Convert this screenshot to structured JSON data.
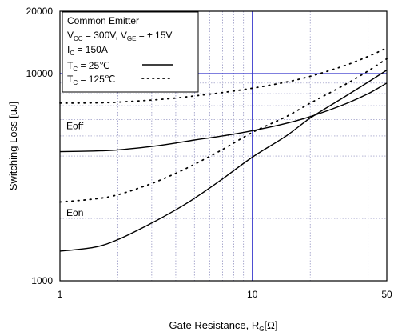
{
  "chart_data": {
    "type": "line",
    "xlabel": "Gate Resistance, R",
    "xlabel_sub": "G",
    "xlabel_unit": "[Ω]",
    "ylabel": "Switching Loss [uJ]",
    "x_scale": "log",
    "y_scale": "log",
    "xlim": [
      1,
      50
    ],
    "ylim": [
      1000,
      20000
    ],
    "x_ticks": [
      {
        "value": 1,
        "label": "1"
      },
      {
        "value": 10,
        "label": "10"
      },
      {
        "value": 50,
        "label": "50"
      }
    ],
    "y_ticks": [
      {
        "value": 1000,
        "label": "1000"
      },
      {
        "value": 10000,
        "label": "10000"
      },
      {
        "value": 20000,
        "label": "20000"
      }
    ],
    "grid": true,
    "reference_lines": {
      "x": 10,
      "y": 10000,
      "color": "#3333cc"
    },
    "legend": {
      "placement": "top-left",
      "title": "Common Emitter",
      "lines": [
        {
          "text": "V",
          "sub": "CC",
          "rest": " = 300V, V",
          "sub2": "GE",
          "rest2": " = ± 15V"
        },
        {
          "text": "I",
          "sub": "C",
          "rest": " = 150A"
        }
      ],
      "entries": [
        {
          "text": "T",
          "sub": "C",
          "rest": " =  25℃",
          "style": "solid"
        },
        {
          "text": "T",
          "sub": "C",
          "rest": " = 125℃",
          "style": "dotted"
        }
      ]
    },
    "curve_labels": [
      {
        "text": "Eoff",
        "x": 1.08,
        "y": 5400
      },
      {
        "text": "Eon",
        "x": 1.08,
        "y": 2050
      }
    ],
    "series": [
      {
        "name": "Eoff 25℃",
        "style": "solid",
        "x": [
          1,
          1.5,
          2,
          3,
          4,
          5,
          7,
          10,
          15,
          20,
          30,
          40,
          50
        ],
        "y": [
          4200,
          4230,
          4280,
          4450,
          4620,
          4780,
          5000,
          5300,
          5750,
          6200,
          7100,
          8000,
          9000
        ]
      },
      {
        "name": "Eoff 125℃",
        "style": "dotted",
        "x": [
          1,
          1.5,
          2,
          3,
          4,
          5,
          7,
          10,
          15,
          20,
          30,
          40,
          50
        ],
        "y": [
          7200,
          7220,
          7280,
          7450,
          7620,
          7800,
          8100,
          8500,
          9100,
          9700,
          10900,
          12100,
          13300
        ]
      },
      {
        "name": "Eon 25℃",
        "style": "solid",
        "x": [
          1,
          1.5,
          2,
          3,
          4,
          5,
          7,
          10,
          15,
          20,
          30,
          40,
          50
        ],
        "y": [
          1390,
          1450,
          1580,
          1900,
          2200,
          2500,
          3100,
          3950,
          5000,
          6100,
          7700,
          9100,
          10400
        ]
      },
      {
        "name": "Eon 125℃",
        "style": "dotted",
        "x": [
          1,
          1.5,
          2,
          3,
          4,
          5,
          7,
          10,
          15,
          20,
          30,
          40,
          50
        ],
        "y": [
          2400,
          2480,
          2600,
          2950,
          3300,
          3650,
          4300,
          5200,
          6200,
          7200,
          8800,
          10300,
          11800
        ]
      }
    ]
  }
}
